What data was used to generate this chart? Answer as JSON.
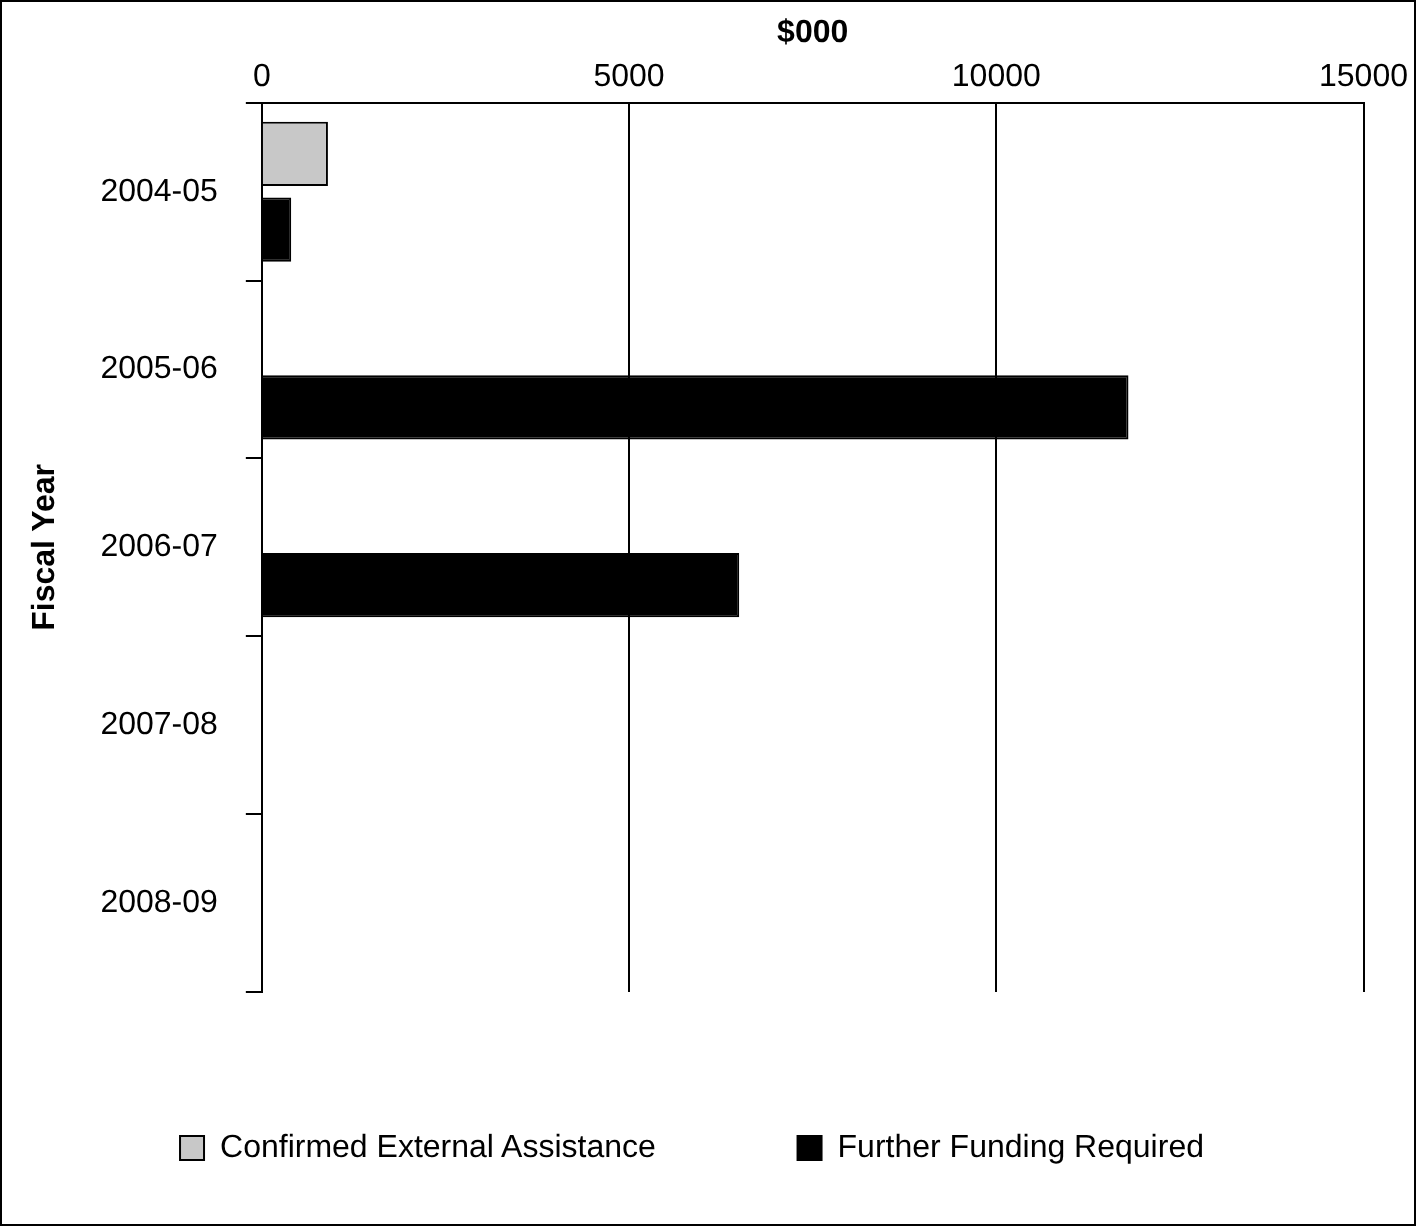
{
  "chart_data": {
    "type": "bar",
    "orientation": "horizontal",
    "xlabel": "$000",
    "ylabel": "Fiscal Year",
    "categories": [
      "2004-05",
      "2005-06",
      "2006-07",
      "2007-08",
      "2008-09"
    ],
    "series": [
      {
        "name": "Confirmed External Assistance",
        "color": "#c8c8c8",
        "values": [
          900,
          null,
          null,
          null,
          null
        ]
      },
      {
        "name": "Further Funding Required",
        "color": "#000000",
        "values": [
          400,
          11800,
          6500,
          null,
          null
        ]
      }
    ],
    "xlim": [
      0,
      15000
    ],
    "xticks": [
      0,
      5000,
      10000,
      15000
    ],
    "grid": "x",
    "legend": "bottom"
  }
}
